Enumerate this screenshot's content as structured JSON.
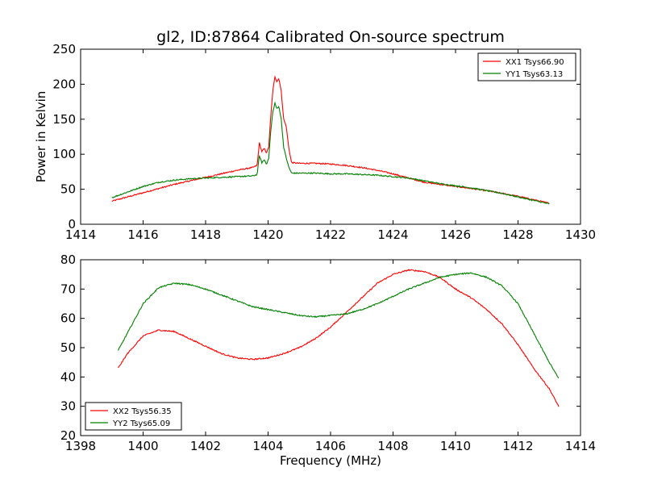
{
  "figure": {
    "title": "gl2, ID:87864 Calibrated On-source spectrum"
  },
  "chart_data": [
    {
      "type": "line",
      "title": "gl2, ID:87864 Calibrated On-source spectrum",
      "xlabel": "",
      "ylabel": "Power in Kelvin",
      "xlim": [
        1414,
        1430
      ],
      "ylim": [
        0,
        250
      ],
      "xticks": [
        1414,
        1416,
        1418,
        1420,
        1422,
        1424,
        1426,
        1428,
        1430
      ],
      "yticks": [
        0,
        50,
        100,
        150,
        200,
        250
      ],
      "grid": false,
      "legend_position": "top-right",
      "series": [
        {
          "name": "XX1 Tsys66.90",
          "color": "#ff0000",
          "x": [
            1415.0,
            1415.5,
            1416.0,
            1416.5,
            1417.0,
            1417.5,
            1418.0,
            1418.5,
            1419.0,
            1419.5,
            1419.65,
            1419.72,
            1419.8,
            1419.88,
            1419.95,
            1420.02,
            1420.08,
            1420.15,
            1420.22,
            1420.28,
            1420.35,
            1420.42,
            1420.5,
            1420.58,
            1420.66,
            1420.75,
            1421.0,
            1421.5,
            1422.0,
            1422.5,
            1423.0,
            1423.5,
            1424.0,
            1424.5,
            1425.0,
            1425.5,
            1426.0,
            1426.5,
            1427.0,
            1427.5,
            1428.0,
            1428.5,
            1429.0
          ],
          "y": [
            33,
            39,
            45,
            51,
            57,
            62,
            67,
            72,
            77,
            81,
            84,
            116,
            104,
            108,
            102,
            110,
            150,
            190,
            211,
            204,
            208,
            190,
            150,
            140,
            110,
            88,
            87,
            87,
            86,
            84,
            81,
            77,
            72,
            66,
            60,
            57,
            54,
            51,
            48,
            44,
            40,
            35,
            30
          ]
        },
        {
          "name": "YY1 Tsys63.13",
          "color": "#008000",
          "x": [
            1415.0,
            1415.5,
            1416.0,
            1416.5,
            1417.0,
            1417.5,
            1418.0,
            1418.5,
            1419.0,
            1419.5,
            1419.65,
            1419.72,
            1419.8,
            1419.88,
            1419.95,
            1420.02,
            1420.08,
            1420.15,
            1420.22,
            1420.28,
            1420.35,
            1420.42,
            1420.5,
            1420.58,
            1420.66,
            1420.75,
            1421.0,
            1421.5,
            1422.0,
            1422.5,
            1423.0,
            1423.5,
            1424.0,
            1424.5,
            1425.0,
            1425.5,
            1426.0,
            1426.5,
            1427.0,
            1427.5,
            1428.0,
            1428.5,
            1429.0
          ],
          "y": [
            38,
            46,
            54,
            60,
            63,
            65,
            66,
            67,
            68,
            69,
            71,
            98,
            88,
            92,
            86,
            94,
            130,
            160,
            173,
            165,
            168,
            150,
            110,
            95,
            82,
            73,
            73,
            73,
            72,
            72,
            71,
            70,
            68,
            66,
            62,
            58,
            55,
            52,
            48,
            44,
            39,
            34,
            29
          ]
        }
      ]
    },
    {
      "type": "line",
      "title": "",
      "xlabel": "Frequency (MHz)",
      "ylabel": "",
      "xlim": [
        1398,
        1414
      ],
      "ylim": [
        20,
        80
      ],
      "xticks": [
        1398,
        1400,
        1402,
        1404,
        1406,
        1408,
        1410,
        1412,
        1414
      ],
      "yticks": [
        20,
        30,
        40,
        50,
        60,
        70,
        80
      ],
      "grid": false,
      "legend_position": "bottom-left",
      "series": [
        {
          "name": "XX2 Tsys56.35",
          "color": "#ff0000",
          "x": [
            1399.2,
            1399.5,
            1400.0,
            1400.5,
            1401.0,
            1401.5,
            1402.0,
            1402.5,
            1403.0,
            1403.5,
            1404.0,
            1404.5,
            1405.0,
            1405.5,
            1406.0,
            1406.5,
            1407.0,
            1407.5,
            1408.0,
            1408.5,
            1409.0,
            1409.5,
            1410.0,
            1410.5,
            1411.0,
            1411.5,
            1412.0,
            1412.5,
            1413.0,
            1413.3
          ],
          "y": [
            43,
            48,
            54,
            56,
            55.5,
            53,
            50.5,
            48,
            46.5,
            46,
            46.5,
            48,
            50,
            53,
            57,
            62,
            67,
            72,
            75,
            76.5,
            76,
            74,
            70,
            67,
            63,
            58,
            51,
            43,
            36,
            30
          ]
        },
        {
          "name": "YY2 Tsys65.09",
          "color": "#008000",
          "x": [
            1399.2,
            1399.5,
            1400.0,
            1400.5,
            1401.0,
            1401.5,
            1402.0,
            1402.5,
            1403.0,
            1403.5,
            1404.0,
            1404.5,
            1405.0,
            1405.5,
            1406.0,
            1406.5,
            1407.0,
            1407.5,
            1408.0,
            1408.5,
            1409.0,
            1409.5,
            1410.0,
            1410.5,
            1411.0,
            1411.5,
            1412.0,
            1412.5,
            1413.0,
            1413.3
          ],
          "y": [
            49,
            55,
            65,
            70.5,
            72,
            71.5,
            70,
            68,
            66,
            64,
            63,
            62,
            61,
            60.5,
            61,
            61.5,
            63,
            65,
            67.5,
            70,
            72,
            74,
            75,
            75.5,
            74,
            71,
            65,
            55,
            45,
            39.5
          ]
        }
      ]
    }
  ]
}
